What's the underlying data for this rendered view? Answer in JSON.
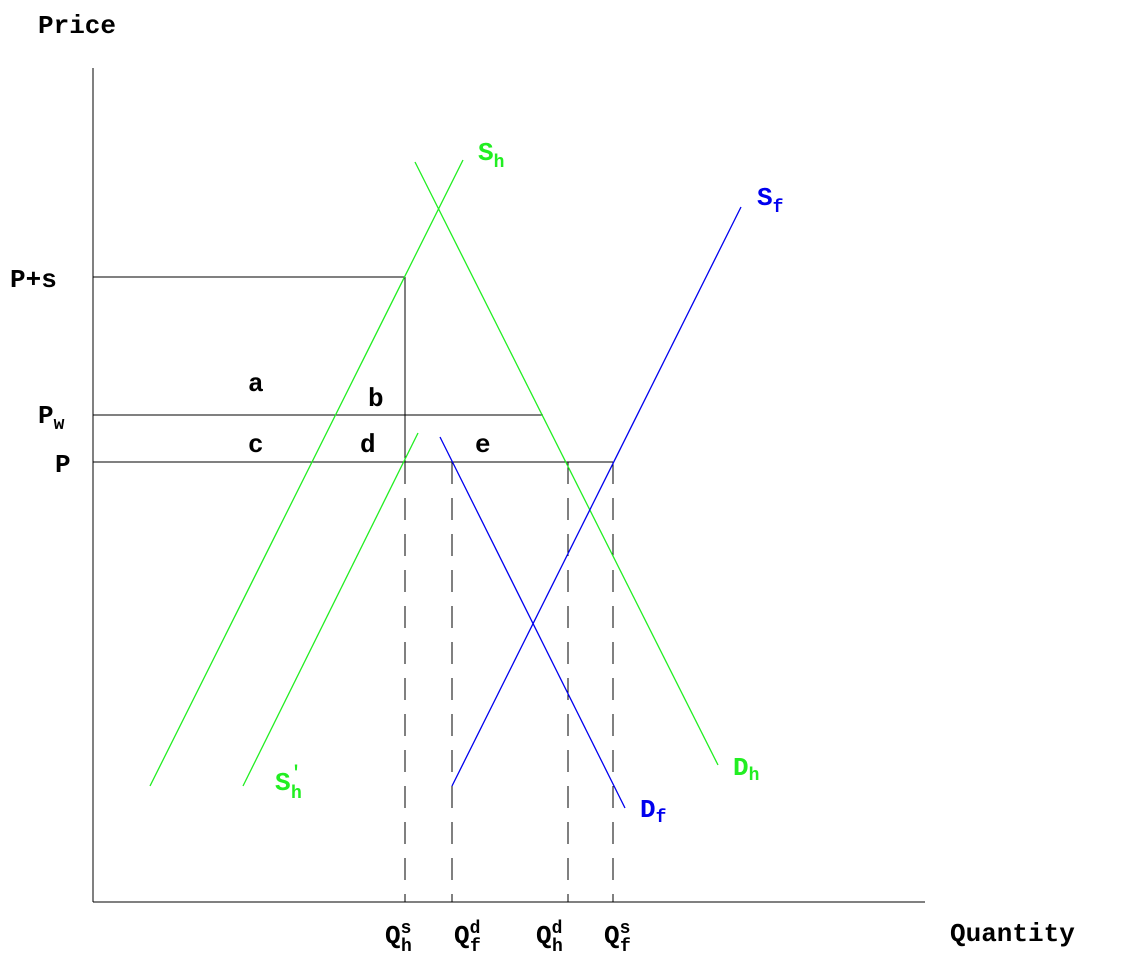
{
  "axes": {
    "y_label": "Price",
    "x_label": "Quantity"
  },
  "price_levels": [
    {
      "label": "P+s"
    },
    {
      "label": "P",
      "sub": "w"
    },
    {
      "label": "P"
    }
  ],
  "areas": [
    "a",
    "b",
    "c",
    "d",
    "e"
  ],
  "curves": [
    {
      "label": "S",
      "sub": "h"
    },
    {
      "label": "S",
      "sub": "h",
      "sup": "'"
    },
    {
      "label": "S",
      "sub": "f"
    },
    {
      "label": "D",
      "sub": "h"
    },
    {
      "label": "D",
      "sub": "f"
    }
  ],
  "quantities": [
    {
      "label": "Q",
      "sup": "s",
      "sub": "h"
    },
    {
      "label": "Q",
      "sup": "d",
      "sub": "f"
    },
    {
      "label": "Q",
      "sup": "d",
      "sub": "h"
    },
    {
      "label": "Q",
      "sup": "s",
      "sub": "f"
    }
  ]
}
